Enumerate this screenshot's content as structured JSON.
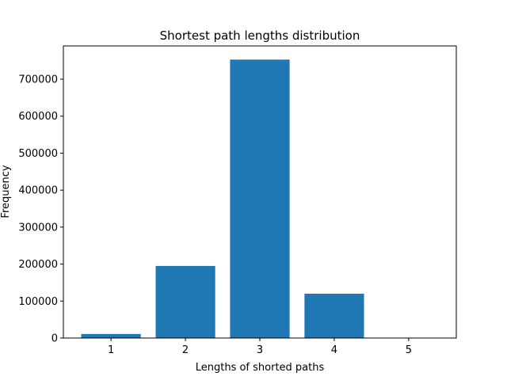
{
  "chart_data": {
    "type": "bar",
    "title": "Shortest path lengths distribution",
    "xlabel": "Lengths of shorted paths",
    "ylabel": "Frequency",
    "categories": [
      "1",
      "2",
      "3",
      "4",
      "5"
    ],
    "values": [
      11000,
      195000,
      753000,
      120000,
      800
    ],
    "ylim": [
      0,
      790000
    ],
    "yticks": [
      "0",
      "100000",
      "200000",
      "300000",
      "400000",
      "500000",
      "600000",
      "700000"
    ],
    "ytick_values": [
      0,
      100000,
      200000,
      300000,
      400000,
      500000,
      600000,
      700000
    ],
    "bar_color": "#1f77b4",
    "grid": false,
    "legend": "none"
  }
}
